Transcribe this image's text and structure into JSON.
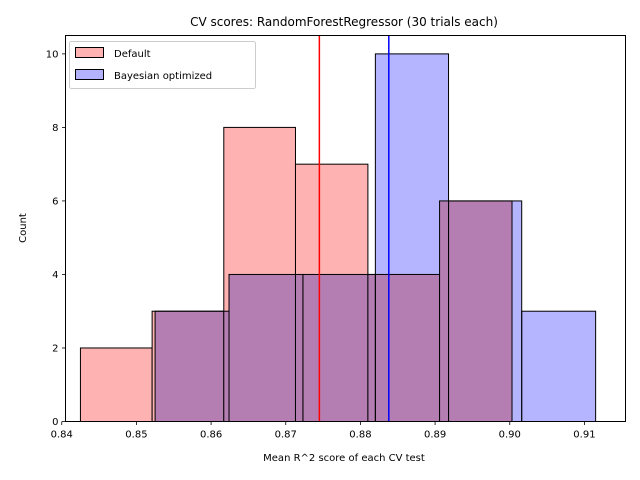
{
  "chart_data": {
    "type": "histogram",
    "title": "CV scores: RandomForestRegressor (30 trials each)",
    "xlabel": "Mean R^2 score of each CV test",
    "ylabel": "Count",
    "xlim": [
      0.8405,
      0.9155
    ],
    "ylim": [
      0,
      10.5
    ],
    "x_ticks": [
      "0.84",
      "0.85",
      "0.86",
      "0.87",
      "0.88",
      "0.89",
      "0.90",
      "0.91"
    ],
    "x_tick_values": [
      0.84,
      0.85,
      0.86,
      0.87,
      0.88,
      0.89,
      0.9,
      0.91
    ],
    "y_ticks": [
      "0",
      "2",
      "4",
      "6",
      "8",
      "10"
    ],
    "y_tick_values": [
      0,
      2,
      4,
      6,
      8,
      10
    ],
    "legend_position": "top-left",
    "grid": false,
    "series": [
      {
        "name": "Default",
        "color": "#ff0000",
        "fill": "#ffb2b2",
        "mean_line": 0.8745,
        "bins": [
          {
            "start": 0.8425,
            "end": 0.8521,
            "count": 2
          },
          {
            "start": 0.8521,
            "end": 0.8617,
            "count": 3
          },
          {
            "start": 0.8617,
            "end": 0.8713,
            "count": 8
          },
          {
            "start": 0.8713,
            "end": 0.881,
            "count": 7
          },
          {
            "start": 0.881,
            "end": 0.8906,
            "count": 4
          },
          {
            "start": 0.8906,
            "end": 0.9003,
            "count": 6
          }
        ]
      },
      {
        "name": "Bayesian optimized",
        "color": "#0000ff",
        "fill": "#b2b2ff",
        "mean_line": 0.8838,
        "bins": [
          {
            "start": 0.8525,
            "end": 0.8624,
            "count": 3
          },
          {
            "start": 0.8624,
            "end": 0.8723,
            "count": 4
          },
          {
            "start": 0.8723,
            "end": 0.882,
            "count": 4
          },
          {
            "start": 0.882,
            "end": 0.8918,
            "count": 10
          },
          {
            "start": 0.8918,
            "end": 0.9016,
            "count": 6
          },
          {
            "start": 0.9016,
            "end": 0.9115,
            "count": 3
          }
        ]
      }
    ]
  }
}
